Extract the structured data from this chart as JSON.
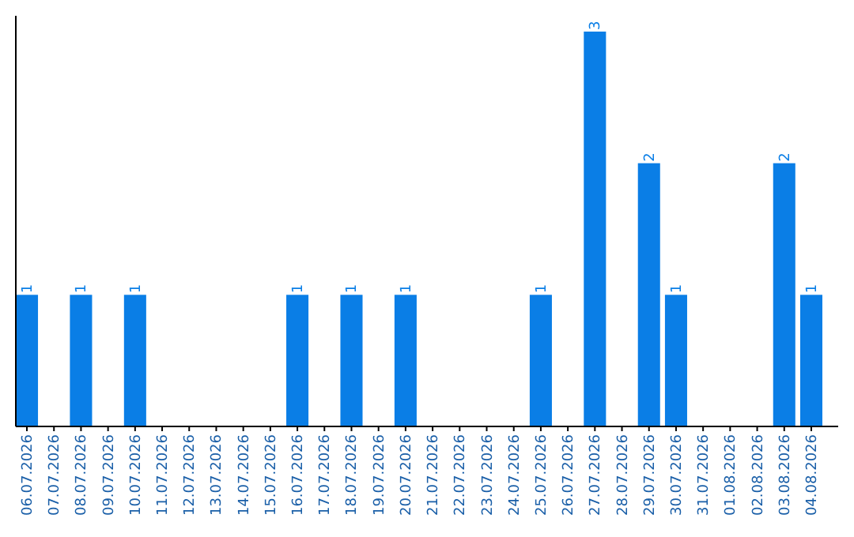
{
  "chart_data": {
    "type": "bar",
    "categories": [
      "06.07.2026",
      "07.07.2026",
      "08.07.2026",
      "09.07.2026",
      "10.07.2026",
      "11.07.2026",
      "12.07.2026",
      "13.07.2026",
      "14.07.2026",
      "15.07.2026",
      "16.07.2026",
      "17.07.2026",
      "18.07.2026",
      "19.07.2026",
      "20.07.2026",
      "21.07.2026",
      "22.07.2026",
      "23.07.2026",
      "24.07.2026",
      "25.07.2026",
      "26.07.2026",
      "27.07.2026",
      "28.07.2026",
      "29.07.2026",
      "30.07.2026",
      "31.07.2026",
      "01.08.2026",
      "02.08.2026",
      "03.08.2026",
      "04.08.2026"
    ],
    "values": [
      1,
      0,
      1,
      0,
      1,
      0,
      0,
      0,
      0,
      0,
      1,
      0,
      1,
      0,
      1,
      0,
      0,
      0,
      0,
      1,
      0,
      3,
      0,
      2,
      1,
      0,
      0,
      0,
      2,
      1
    ],
    "value_labels": [
      "1",
      null,
      "1",
      null,
      "1",
      null,
      null,
      null,
      null,
      null,
      "1",
      null,
      "1",
      null,
      "1",
      null,
      null,
      null,
      null,
      "1",
      null,
      "3",
      null,
      "2",
      "1",
      null,
      null,
      null,
      "2",
      "1"
    ],
    "color": "#0a7ee6"
  }
}
